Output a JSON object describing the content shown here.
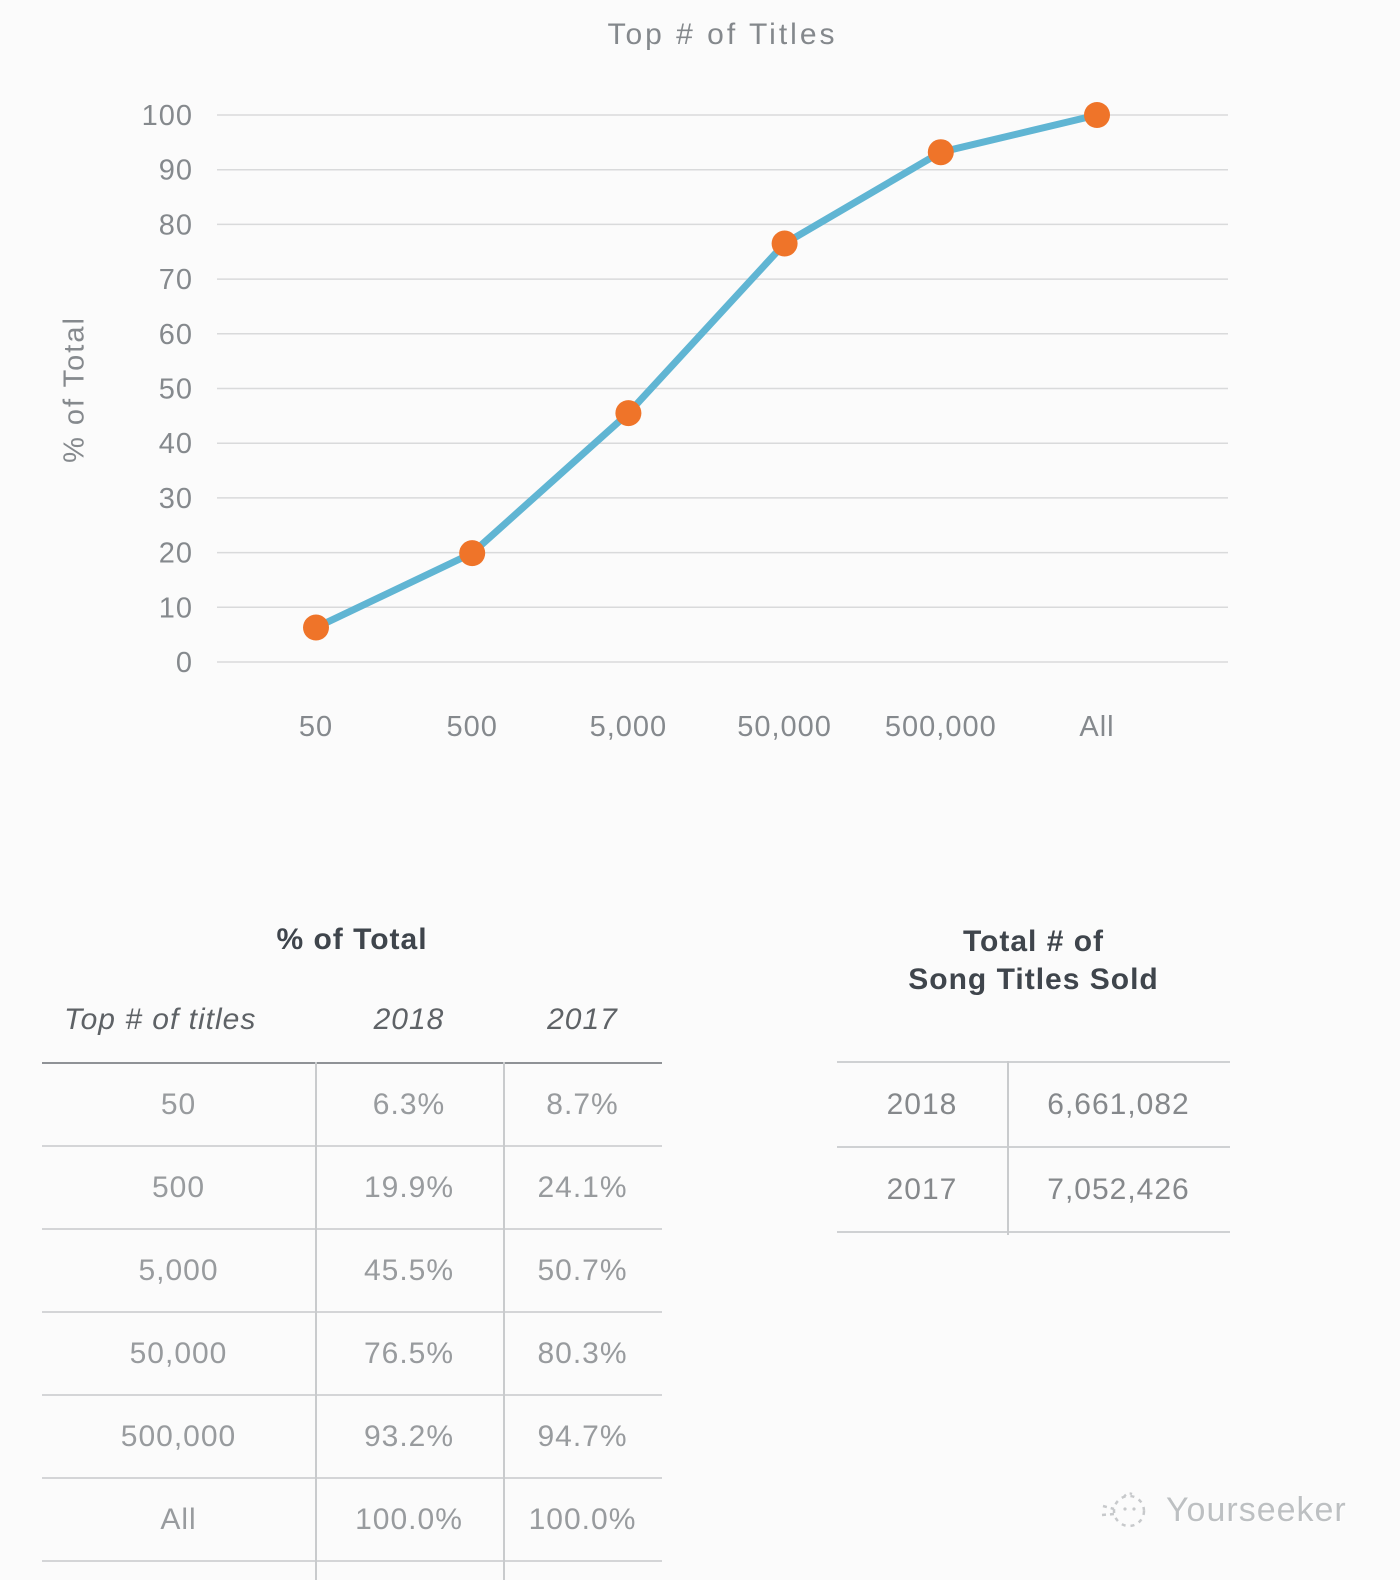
{
  "chart": {
    "title": "Top # of Titles",
    "y_axis_label": "% of Total",
    "line_color": "#60b5d3",
    "marker_color": "#ef7429",
    "gridline_color": "#d9dadb",
    "tick_color": "#85898d"
  },
  "chart_data": {
    "type": "line",
    "title": "Top # of Titles",
    "xlabel": "Top # of titles",
    "ylabel": "% of Total",
    "categories": [
      "50",
      "500",
      "5,000",
      "50,000",
      "500,000",
      "All"
    ],
    "series": [
      {
        "name": "2018",
        "values": [
          6.3,
          19.9,
          45.5,
          76.5,
          93.2,
          100.0
        ]
      }
    ],
    "y_ticks": [
      0,
      10,
      20,
      30,
      40,
      50,
      60,
      70,
      80,
      90,
      100
    ],
    "ylim": [
      0,
      100
    ],
    "grid": true,
    "legend_position": "none",
    "marker": "circle"
  },
  "left_table": {
    "title": "% of Total",
    "columns": [
      "Top # of titles",
      "2018",
      "2017"
    ],
    "rows": [
      [
        "50",
        "6.3%",
        "8.7%"
      ],
      [
        "500",
        "19.9%",
        "24.1%"
      ],
      [
        "5,000",
        "45.5%",
        "50.7%"
      ],
      [
        "50,000",
        "76.5%",
        "80.3%"
      ],
      [
        "500,000",
        "93.2%",
        "94.7%"
      ],
      [
        "All",
        "100.0%",
        "100.0%"
      ]
    ]
  },
  "right_table": {
    "title_line1": "Total # of",
    "title_line2": "Song Titles Sold",
    "rows": [
      [
        "2018",
        "6,661,082"
      ],
      [
        "2017",
        "7,052,426"
      ]
    ]
  },
  "watermark": {
    "text": "Yourseeker",
    "icon": "yourseeker-logo-icon"
  }
}
